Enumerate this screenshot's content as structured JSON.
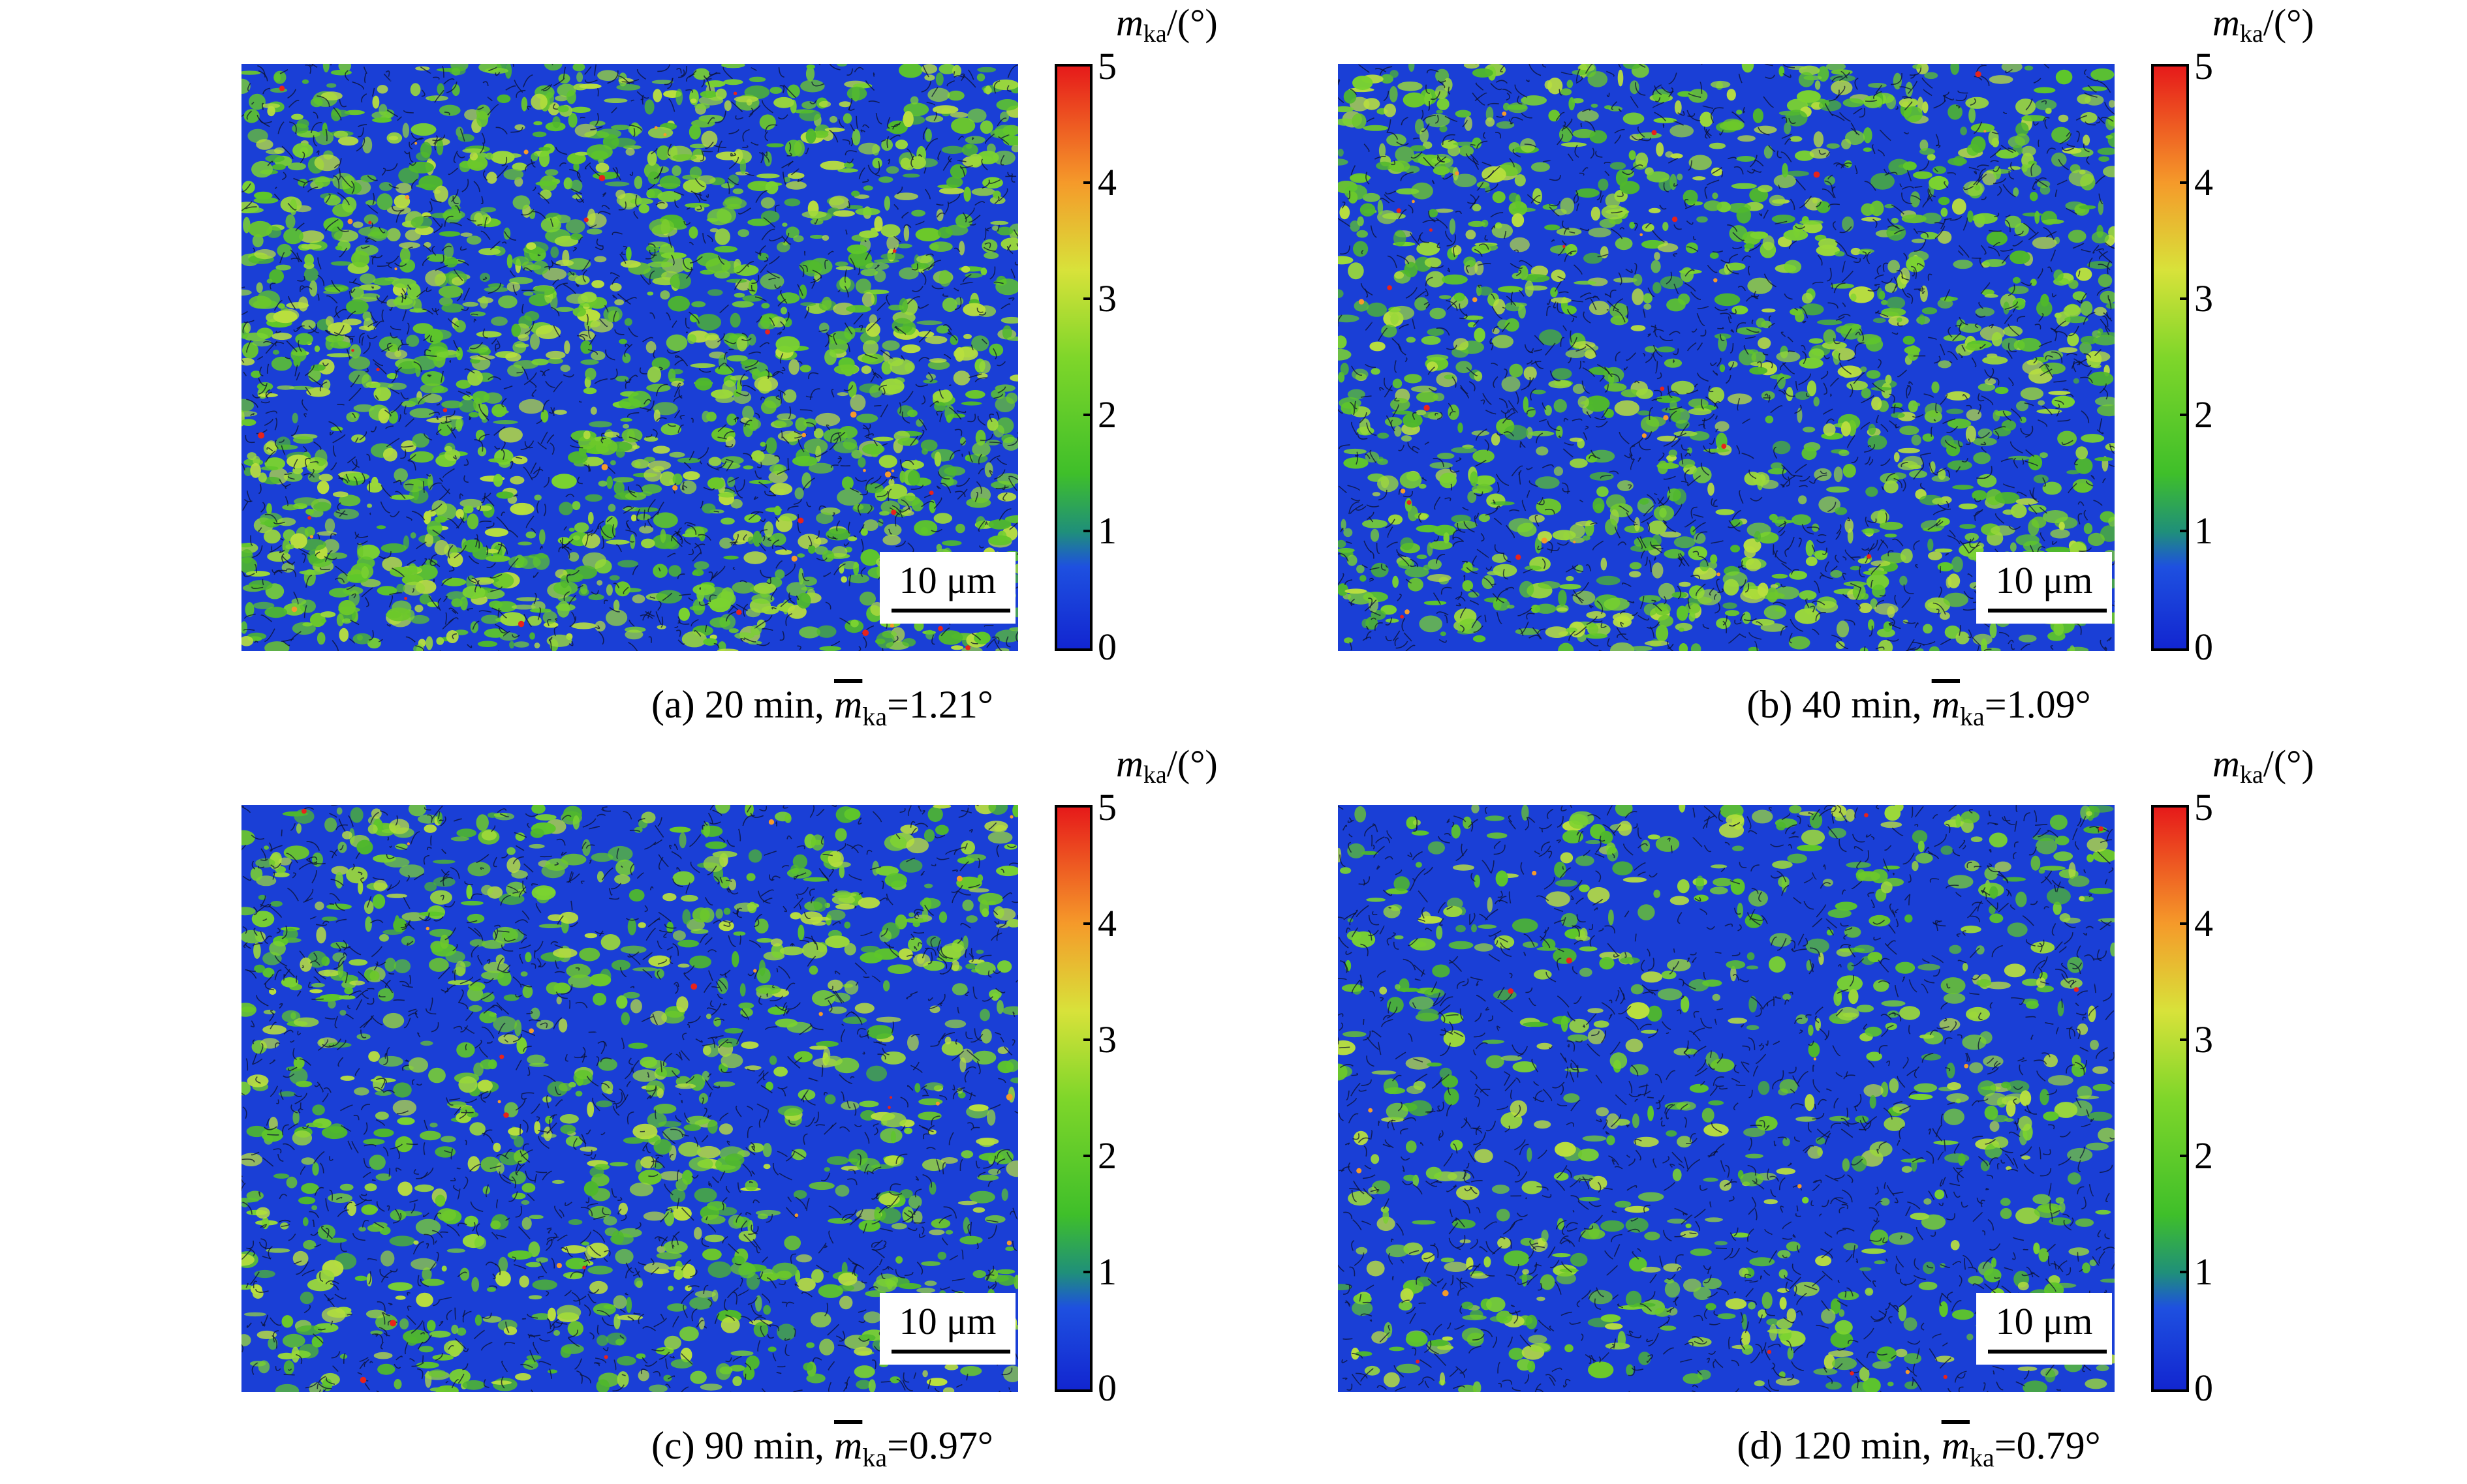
{
  "colors": {
    "low": "#1a3fd6",
    "mid": "#5ec62a",
    "high": "#e8231b"
  },
  "panels": [
    {
      "id": "a",
      "caption_prefix": "(a) 20 min, ",
      "caption_symbol": "m",
      "caption_sub": "ka",
      "caption_value": "=1.21°",
      "scalebar_label": "10 μm",
      "colorbar_title_symbol": "m",
      "colorbar_title_sub": "ka",
      "colorbar_title_unit": "/(°)",
      "colorbar_ticks": [
        "5",
        "4",
        "3",
        "2",
        "1",
        "0"
      ],
      "green_fraction": 0.65
    },
    {
      "id": "b",
      "caption_prefix": "(b) 40 min, ",
      "caption_symbol": "m",
      "caption_sub": "ka",
      "caption_value": "=1.09°",
      "scalebar_label": "10 μm",
      "colorbar_title_symbol": "m",
      "colorbar_title_sub": "ka",
      "colorbar_title_unit": "/(°)",
      "colorbar_ticks": [
        "5",
        "4",
        "3",
        "2",
        "1",
        "0"
      ],
      "green_fraction": 0.5
    },
    {
      "id": "c",
      "caption_prefix": "(c) 90 min, ",
      "caption_symbol": "m",
      "caption_sub": "ka",
      "caption_value": "=0.97°",
      "scalebar_label": "10 μm",
      "colorbar_title_symbol": "m",
      "colorbar_title_sub": "ka",
      "colorbar_title_unit": "/(°)",
      "colorbar_ticks": [
        "5",
        "4",
        "3",
        "2",
        "1",
        "0"
      ],
      "green_fraction": 0.4
    },
    {
      "id": "d",
      "caption_prefix": "(d) 120 min, ",
      "caption_symbol": "m",
      "caption_sub": "ka",
      "caption_value": "=0.79°",
      "scalebar_label": "10 μm",
      "colorbar_title_symbol": "m",
      "colorbar_title_sub": "ka",
      "colorbar_title_unit": "/(°)",
      "colorbar_ticks": [
        "5",
        "4",
        "3",
        "2",
        "1",
        "0"
      ],
      "green_fraction": 0.28
    }
  ]
}
